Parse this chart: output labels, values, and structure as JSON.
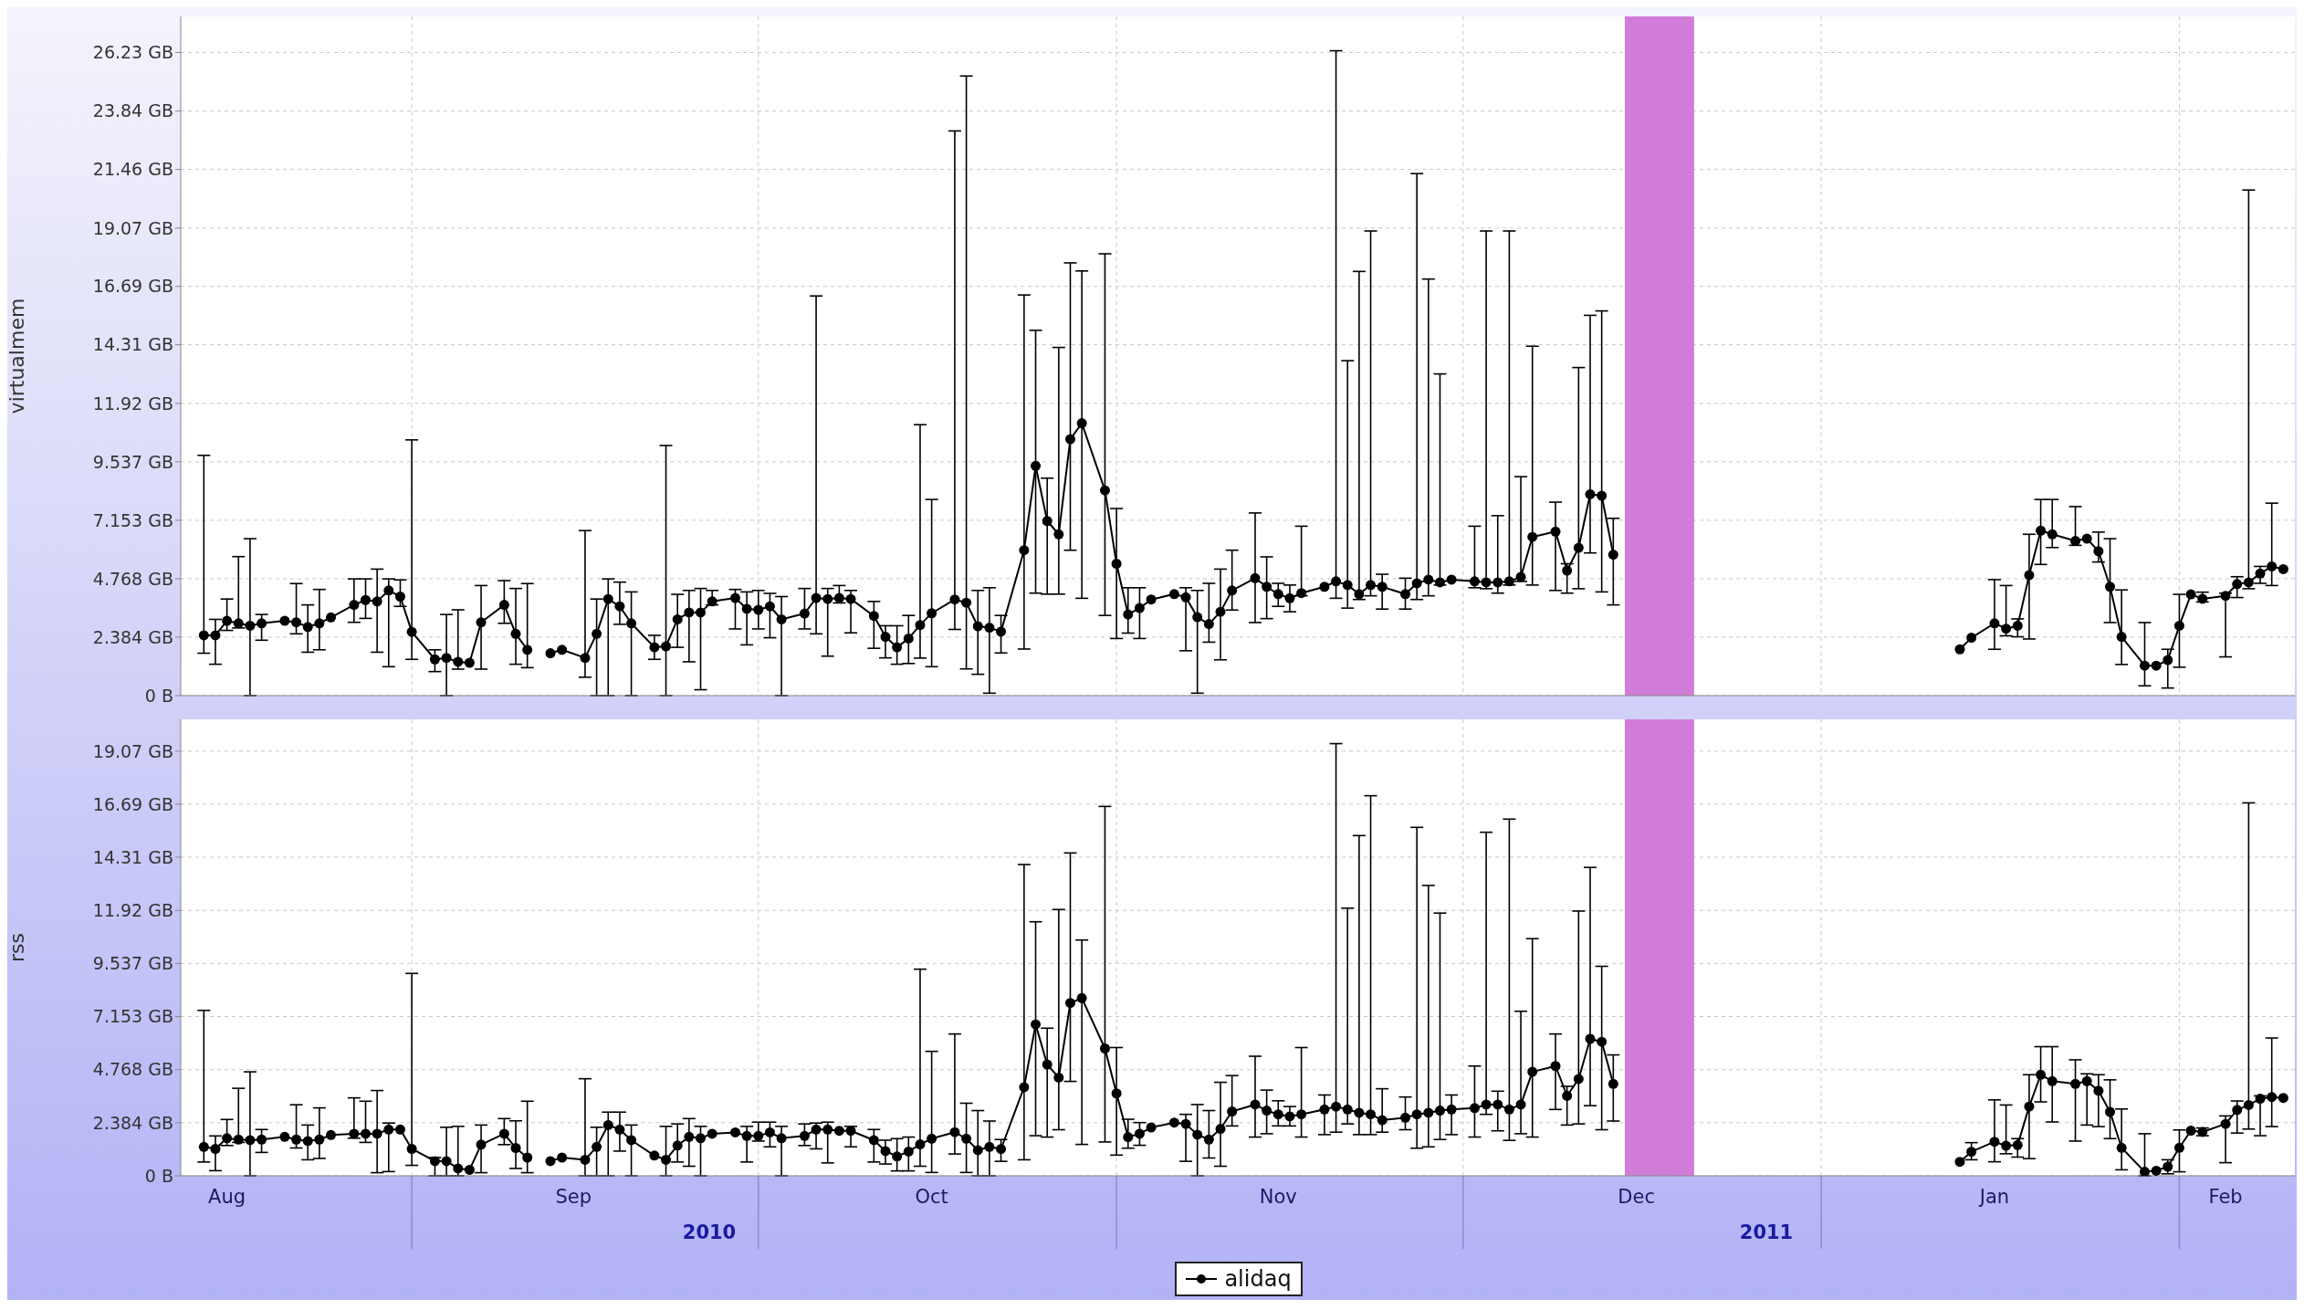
{
  "chart_data": [
    {
      "type": "line",
      "ylabel": "virtualmem",
      "tick_labels": "y",
      "grid": true,
      "legend": false,
      "marker": "circle",
      "line_style": "solid",
      "x": [
        "2010-08-14",
        "2010-08-15",
        "2010-08-16",
        "2010-08-17",
        "2010-08-18",
        "2010-08-19",
        "2010-08-21",
        "2010-08-22",
        "2010-08-23",
        "2010-08-24",
        "2010-08-25",
        "2010-08-27",
        "2010-08-28",
        "2010-08-29",
        "2010-08-30",
        "2010-08-31",
        "2010-09-01",
        "2010-09-03",
        "2010-09-04",
        "2010-09-05",
        "2010-09-06",
        "2010-09-07",
        "2010-09-09",
        "2010-09-10",
        "2010-09-11",
        "2010-09-12",
        "2010-09-13",
        "2010-09-14",
        "2010-09-16",
        "2010-09-17",
        "2010-09-18",
        "2010-09-19",
        "2010-09-20",
        "2010-09-22",
        "2010-09-23",
        "2010-09-24",
        "2010-09-25",
        "2010-09-26",
        "2010-09-27",
        "2010-09-29",
        "2010-09-30",
        "2010-10-01",
        "2010-10-02",
        "2010-10-03",
        "2010-10-05",
        "2010-10-06",
        "2010-10-07",
        "2010-10-08",
        "2010-10-09",
        "2010-10-11",
        "2010-10-12",
        "2010-10-13",
        "2010-10-14",
        "2010-10-15",
        "2010-10-16",
        "2010-10-18",
        "2010-10-19",
        "2010-10-20",
        "2010-10-21",
        "2010-10-22",
        "2010-10-24",
        "2010-10-25",
        "2010-10-26",
        "2010-10-27",
        "2010-10-28",
        "2010-10-29",
        "2010-10-31",
        "2010-11-01",
        "2010-11-02",
        "2010-11-03",
        "2010-11-04",
        "2010-11-06",
        "2010-11-07",
        "2010-11-08",
        "2010-11-09",
        "2010-11-10",
        "2010-11-11",
        "2010-11-13",
        "2010-11-14",
        "2010-11-15",
        "2010-11-16",
        "2010-11-17",
        "2010-11-19",
        "2010-11-20",
        "2010-11-21",
        "2010-11-22",
        "2010-11-23",
        "2010-11-24",
        "2010-11-26",
        "2010-11-27",
        "2010-11-28",
        "2010-11-29",
        "2010-11-30",
        "2010-12-02",
        "2010-12-03",
        "2010-12-04",
        "2010-12-05",
        "2010-12-06",
        "2010-12-07",
        "2010-12-09",
        "2010-12-10",
        "2010-12-11",
        "2010-12-12",
        "2010-12-13",
        "2010-12-14",
        "2010-12-31",
        "2011-01-13",
        "2011-01-14",
        "2011-01-16",
        "2011-01-17",
        "2011-01-18",
        "2011-01-19",
        "2011-01-20",
        "2011-01-21",
        "2011-01-23",
        "2011-01-24",
        "2011-01-25",
        "2011-01-26",
        "2011-01-27",
        "2011-01-29",
        "2011-01-30",
        "2011-01-31",
        "2011-02-01",
        "2011-02-02",
        "2011-02-03",
        "2011-02-05",
        "2011-02-06",
        "2011-02-07",
        "2011-02-08",
        "2011-02-09",
        "2011-02-10"
      ],
      "xlim": [
        "2010-08-12",
        "2011-02-11"
      ],
      "xticks": [
        "2010-09-01",
        "2010-10-01",
        "2010-11-01",
        "2010-12-01",
        "2011-01-01",
        "2011-02-01"
      ],
      "ylim": [
        0,
        27.7
      ],
      "yticks": [
        {
          "value": 0,
          "label": "0 B"
        },
        {
          "value": 2.384,
          "label": "2.384 GB"
        },
        {
          "value": 4.768,
          "label": "4.768 GB"
        },
        {
          "value": 7.153,
          "label": "7.153 GB"
        },
        {
          "value": 9.537,
          "label": "9.537 GB"
        },
        {
          "value": 11.92,
          "label": "11.92 GB"
        },
        {
          "value": 14.31,
          "label": "14.31 GB"
        },
        {
          "value": 16.69,
          "label": "16.69 GB"
        },
        {
          "value": 19.07,
          "label": "19.07 GB"
        },
        {
          "value": 21.46,
          "label": "21.46 GB"
        },
        {
          "value": 23.84,
          "label": "23.84 GB"
        },
        {
          "value": 26.23,
          "label": "26.23 GB"
        }
      ],
      "bands": [
        {
          "axis": "x",
          "from": "2010-12-15",
          "to": "2010-12-21",
          "color": "#d17cd9"
        }
      ],
      "series": [
        {
          "color": "#000000",
          "values": [
            2.46,
            2.46,
            3.05,
            2.95,
            2.85,
            2.95,
            3.05,
            2.99,
            2.8,
            2.95,
            3.19,
            3.7,
            3.9,
            3.84,
            4.29,
            4.04,
            2.6,
            1.48,
            1.54,
            1.38,
            1.34,
            2.99,
            3.7,
            2.52,
            1.87,
            null,
            1.73,
            1.87,
            1.54,
            2.52,
            3.94,
            3.64,
            2.95,
            1.97,
            2.01,
            3.11,
            3.39,
            3.39,
            3.84,
            3.98,
            3.54,
            3.5,
            3.64,
            3.11,
            3.35,
            3.98,
            3.94,
            3.98,
            3.94,
            3.25,
            2.4,
            1.97,
            2.33,
            2.88,
            3.36,
            3.92,
            3.79,
            2.83,
            2.77,
            2.61,
            5.93,
            9.37,
            7.12,
            6.58,
            10.46,
            11.11,
            8.37,
            5.38,
            3.31,
            3.57,
            3.92,
            4.14,
            4.01,
            3.2,
            2.92,
            3.42,
            4.29,
            4.79,
            4.44,
            4.14,
            3.97,
            4.18,
            4.44,
            4.66,
            4.51,
            4.14,
            4.51,
            4.44,
            4.14,
            4.58,
            4.73,
            4.62,
            4.73,
            4.66,
            4.62,
            4.62,
            4.66,
            4.84,
            6.47,
            6.69,
            5.1,
            6.03,
            8.21,
            8.15,
            5.75,
            null,
            1.89,
            2.36,
            2.95,
            2.73,
            2.85,
            4.91,
            6.73,
            6.58,
            6.31,
            6.4,
            5.89,
            4.44,
            2.4,
            1.22,
            1.22,
            1.45,
            2.85,
            4.13,
            3.95,
            4.07,
            4.55,
            4.62,
            4.98,
            5.27,
            5.16
          ],
          "errors": [
            [
              1.73,
              9.8
            ],
            [
              1.28,
              3.11
            ],
            [
              2.66,
              3.94
            ],
            [
              2.76,
              5.67
            ],
            [
              0,
              6.4
            ],
            [
              2.26,
              3.31
            ],
            null,
            [
              2.52,
              4.57
            ],
            [
              1.77,
              3.7
            ],
            [
              1.87,
              4.33
            ],
            null,
            [
              2.99,
              4.76
            ],
            [
              3.15,
              4.76
            ],
            [
              1.77,
              5.16
            ],
            [
              1.18,
              4.76
            ],
            [
              3.64,
              4.72
            ],
            [
              1.48,
              10.43
            ],
            [
              0.98,
              1.87
            ],
            [
              0,
              3.31
            ],
            [
              1.08,
              3.5
            ],
            null,
            [
              1.08,
              4.49
            ],
            [
              2.95,
              4.69
            ],
            [
              1.28,
              4.37
            ],
            [
              1.14,
              4.57
            ],
            null,
            null,
            null,
            [
              0.75,
              6.73
            ],
            [
              0,
              3.94
            ],
            [
              0,
              4.76
            ],
            [
              2.91,
              4.63
            ],
            [
              0,
              4.23
            ],
            [
              1.48,
              2.46
            ],
            [
              0,
              10.2
            ],
            [
              1.97,
              4.13
            ],
            [
              1.38,
              4.29
            ],
            [
              0.24,
              4.37
            ],
            [
              3.7,
              4.29
            ],
            [
              2.72,
              4.33
            ],
            [
              2.07,
              4.23
            ],
            [
              2.72,
              4.29
            ],
            [
              2.36,
              4.17
            ],
            [
              0,
              4.04
            ],
            [
              2.72,
              4.37
            ],
            [
              2.52,
              16.3
            ],
            [
              1.61,
              4.37
            ],
            [
              3.78,
              4.49
            ],
            [
              2.56,
              4.29
            ],
            [
              1.93,
              3.84
            ],
            [
              1.54,
              2.85
            ],
            [
              1.28,
              2.85
            ],
            [
              1.31,
              3.27
            ],
            [
              1.53,
              11.05
            ],
            [
              1.18,
              8.0
            ],
            [
              2.7,
              23.03
            ],
            [
              1.09,
              25.27
            ],
            [
              0.87,
              4.29
            ],
            [
              0.1,
              4.4
            ],
            [
              1.74,
              3.27
            ],
            [
              1.9,
              16.34
            ],
            [
              4.18,
              14.9
            ],
            [
              4.14,
              8.87
            ],
            [
              4.14,
              14.2
            ],
            [
              5.93,
              17.65
            ],
            [
              3.97,
              17.32
            ],
            [
              3.27,
              18.02
            ],
            [
              2.33,
              7.63
            ],
            [
              2.55,
              4.4
            ],
            [
              2.33,
              4.4
            ],
            null,
            null,
            [
              1.83,
              4.4
            ],
            [
              0.1,
              4.29
            ],
            [
              2.18,
              4.58
            ],
            [
              1.46,
              5.16
            ],
            [
              3.49,
              5.93
            ],
            [
              2.98,
              7.45
            ],
            [
              3.14,
              5.66
            ],
            [
              3.64,
              4.58
            ],
            [
              3.42,
              4.51
            ],
            [
              4.07,
              6.91
            ],
            null,
            [
              3.97,
              26.3
            ],
            [
              3.57,
              13.66
            ],
            [
              3.92,
              17.3
            ],
            [
              4.07,
              18.95
            ],
            [
              3.53,
              4.95
            ],
            [
              3.53,
              4.79
            ],
            [
              3.92,
              21.29
            ],
            [
              4.07,
              16.99
            ],
            [
              4.51,
              13.12
            ],
            null,
            [
              4.4,
              6.91
            ],
            [
              4.36,
              18.95
            ],
            [
              4.18,
              7.34
            ],
            [
              4.51,
              18.95
            ],
            [
              4.66,
              8.93
            ],
            [
              4.51,
              14.25
            ],
            [
              4.29,
              7.89
            ],
            [
              4.18,
              5.38
            ],
            [
              4.36,
              13.38
            ],
            [
              5.82,
              15.51
            ],
            [
              4.23,
              15.69
            ],
            [
              3.7,
              7.23
            ],
            null,
            null,
            null,
            [
              1.89,
              4.73
            ],
            [
              2.44,
              4.49
            ],
            [
              2.4,
              3.13
            ],
            [
              2.31,
              6.58
            ],
            [
              5.35,
              8.0
            ],
            [
              6.04,
              8.0
            ],
            [
              6.13,
              7.71
            ],
            null,
            [
              5.45,
              6.67
            ],
            [
              2.98,
              6.4
            ],
            [
              1.27,
              4.31
            ],
            [
              0.4,
              2.98
            ],
            null,
            [
              0.31,
              1.89
            ],
            [
              1.16,
              4.13
            ],
            null,
            [
              3.82,
              4.22
            ],
            [
              1.58,
              4.18
            ],
            [
              4.0,
              4.85
            ],
            [
              4.36,
              20.62
            ],
            [
              4.58,
              5.27
            ],
            [
              4.49,
              7.85
            ],
            null
          ]
        }
      ]
    },
    {
      "type": "line",
      "ylabel": "rss",
      "grid": true,
      "legend": "bottom",
      "marker": "circle",
      "line_style": "solid",
      "x": [
        "2010-08-14",
        "2010-08-15",
        "2010-08-16",
        "2010-08-17",
        "2010-08-18",
        "2010-08-19",
        "2010-08-21",
        "2010-08-22",
        "2010-08-23",
        "2010-08-24",
        "2010-08-25",
        "2010-08-27",
        "2010-08-28",
        "2010-08-29",
        "2010-08-30",
        "2010-08-31",
        "2010-09-01",
        "2010-09-03",
        "2010-09-04",
        "2010-09-05",
        "2010-09-06",
        "2010-09-07",
        "2010-09-09",
        "2010-09-10",
        "2010-09-11",
        "2010-09-12",
        "2010-09-13",
        "2010-09-14",
        "2010-09-16",
        "2010-09-17",
        "2010-09-18",
        "2010-09-19",
        "2010-09-20",
        "2010-09-22",
        "2010-09-23",
        "2010-09-24",
        "2010-09-25",
        "2010-09-26",
        "2010-09-27",
        "2010-09-29",
        "2010-09-30",
        "2010-10-01",
        "2010-10-02",
        "2010-10-03",
        "2010-10-05",
        "2010-10-06",
        "2010-10-07",
        "2010-10-08",
        "2010-10-09",
        "2010-10-11",
        "2010-10-12",
        "2010-10-13",
        "2010-10-14",
        "2010-10-15",
        "2010-10-16",
        "2010-10-18",
        "2010-10-19",
        "2010-10-20",
        "2010-10-21",
        "2010-10-22",
        "2010-10-24",
        "2010-10-25",
        "2010-10-26",
        "2010-10-27",
        "2010-10-28",
        "2010-10-29",
        "2010-10-31",
        "2010-11-01",
        "2010-11-02",
        "2010-11-03",
        "2010-11-04",
        "2010-11-06",
        "2010-11-07",
        "2010-11-08",
        "2010-11-09",
        "2010-11-10",
        "2010-11-11",
        "2010-11-13",
        "2010-11-14",
        "2010-11-15",
        "2010-11-16",
        "2010-11-17",
        "2010-11-19",
        "2010-11-20",
        "2010-11-21",
        "2010-11-22",
        "2010-11-23",
        "2010-11-24",
        "2010-11-26",
        "2010-11-27",
        "2010-11-28",
        "2010-11-29",
        "2010-11-30",
        "2010-12-02",
        "2010-12-03",
        "2010-12-04",
        "2010-12-05",
        "2010-12-06",
        "2010-12-07",
        "2010-12-09",
        "2010-12-10",
        "2010-12-11",
        "2010-12-12",
        "2010-12-13",
        "2010-12-14",
        "2010-12-31",
        "2011-01-13",
        "2011-01-14",
        "2011-01-16",
        "2011-01-17",
        "2011-01-18",
        "2011-01-19",
        "2011-01-20",
        "2011-01-21",
        "2011-01-23",
        "2011-01-24",
        "2011-01-25",
        "2011-01-26",
        "2011-01-27",
        "2011-01-29",
        "2011-01-30",
        "2011-01-31",
        "2011-02-01",
        "2011-02-02",
        "2011-02-03",
        "2011-02-05",
        "2011-02-06",
        "2011-02-07",
        "2011-02-08",
        "2011-02-09",
        "2011-02-10"
      ],
      "xlim": [
        "2010-08-12",
        "2011-02-11"
      ],
      "xticks": [
        {
          "value": "2010-08-16",
          "label": "Aug"
        },
        {
          "value": "2010-09-01",
          "label": null
        },
        {
          "value": "2010-09-15",
          "label": "Sep"
        },
        {
          "value": "2010-10-01",
          "label": null
        },
        {
          "value": "2010-10-16",
          "label": "Oct"
        },
        {
          "value": "2010-11-01",
          "label": null
        },
        {
          "value": "2010-11-15",
          "label": "Nov"
        },
        {
          "value": "2010-12-01",
          "label": null
        },
        {
          "value": "2010-12-16",
          "label": "Dec"
        },
        {
          "value": "2011-01-01",
          "label": null
        },
        {
          "value": "2011-01-16",
          "label": "Jan"
        },
        {
          "value": "2011-02-01",
          "label": null
        },
        {
          "value": "2011-02-05",
          "label": "Feb"
        }
      ],
      "ylim": [
        0,
        20.5
      ],
      "yticks": [
        {
          "value": 0,
          "label": "0 B"
        },
        {
          "value": 2.384,
          "label": "2.384 GB"
        },
        {
          "value": 4.768,
          "label": "4.768 GB"
        },
        {
          "value": 7.153,
          "label": "7.153 GB"
        },
        {
          "value": 9.537,
          "label": "9.537 GB"
        },
        {
          "value": 11.92,
          "label": "11.92 GB"
        },
        {
          "value": 14.31,
          "label": "14.31 GB"
        },
        {
          "value": 16.69,
          "label": "16.69 GB"
        },
        {
          "value": 19.07,
          "label": "19.07 GB"
        }
      ],
      "bands": [
        {
          "axis": "x",
          "from": "2010-12-15",
          "to": "2010-12-21",
          "color": "#d17cd9"
        }
      ],
      "annotations": [
        "2010",
        "2011"
      ],
      "series": [
        {
          "name": "alidaq",
          "color": "#000000",
          "values": [
            1.3,
            1.21,
            1.69,
            1.63,
            1.6,
            1.63,
            1.75,
            1.63,
            1.56,
            1.63,
            1.83,
            1.89,
            1.89,
            1.89,
            2.08,
            2.08,
            1.21,
            0.66,
            0.66,
            0.33,
            0.27,
            1.4,
            1.89,
            1.25,
            0.82,
            null,
            0.66,
            0.82,
            0.72,
            1.3,
            2.28,
            2.08,
            1.6,
            0.91,
            0.72,
            1.36,
            1.75,
            1.69,
            1.89,
            1.95,
            1.79,
            1.79,
            1.95,
            1.69,
            1.79,
            2.08,
            2.08,
            2.02,
            2.02,
            1.6,
            1.11,
            0.87,
            1.09,
            1.41,
            1.67,
            1.96,
            1.67,
            1.15,
            1.3,
            1.2,
            3.98,
            6.8,
            5.0,
            4.41,
            7.76,
            7.98,
            5.72,
            3.7,
            1.74,
            1.89,
            2.17,
            2.39,
            2.33,
            1.85,
            1.63,
            2.11,
            2.89,
            3.2,
            2.93,
            2.76,
            2.67,
            2.76,
            2.98,
            3.11,
            2.98,
            2.83,
            2.76,
            2.5,
            2.61,
            2.76,
            2.83,
            2.93,
            2.98,
            3.04,
            3.2,
            3.2,
            2.98,
            3.2,
            4.67,
            4.93,
            3.59,
            4.35,
            6.15,
            6.02,
            4.13,
            null,
            0.63,
            1.08,
            1.53,
            1.35,
            1.38,
            3.11,
            4.54,
            4.25,
            4.13,
            4.25,
            3.82,
            2.87,
            1.26,
            0.18,
            0.23,
            0.41,
            1.26,
            2.03,
            1.97,
            2.33,
            2.96,
            3.18,
            3.46,
            3.54,
            3.5
          ],
          "errors": [
            [
              0.62,
              7.43
            ],
            [
              0.23,
              1.79
            ],
            [
              1.36,
              2.53
            ],
            [
              1.5,
              3.93
            ],
            [
              0,
              4.67
            ],
            [
              1.05,
              2.08
            ],
            null,
            [
              1.25,
              3.19
            ],
            [
              0.72,
              2.28
            ],
            [
              0.78,
              3.05
            ],
            null,
            [
              1.69,
              3.5
            ],
            [
              1.5,
              3.35
            ],
            [
              0.14,
              3.83
            ],
            [
              0.19,
              2.37
            ],
            null,
            [
              0.47,
              9.09
            ],
            [
              0,
              0.82
            ],
            [
              0,
              2.18
            ],
            [
              0,
              2.22
            ],
            null,
            [
              0.14,
              2.28
            ],
            [
              1.4,
              2.57
            ],
            [
              0.33,
              2.47
            ],
            [
              0.14,
              3.35
            ],
            null,
            null,
            null,
            [
              0,
              4.36
            ],
            [
              0,
              2.18
            ],
            [
              0,
              2.86
            ],
            [
              1.11,
              2.86
            ],
            [
              0,
              2.28
            ],
            null,
            [
              0,
              2.22
            ],
            [
              0.62,
              2.33
            ],
            [
              0.43,
              2.57
            ],
            [
              0,
              2.22
            ],
            null,
            null,
            [
              0.62,
              2.22
            ],
            [
              1.56,
              2.41
            ],
            [
              1.3,
              2.41
            ],
            [
              0,
              2.22
            ],
            [
              1.36,
              2.33
            ],
            [
              1.21,
              2.37
            ],
            [
              0.58,
              2.41
            ],
            null,
            [
              1.3,
              2.22
            ],
            [
              0.62,
              2.08
            ],
            [
              0.53,
              1.6
            ],
            [
              0.22,
              1.67
            ],
            [
              0.22,
              1.74
            ],
            [
              0.43,
              9.28
            ],
            [
              0.15,
              5.59
            ],
            [
              0.98,
              6.37
            ],
            [
              0.15,
              3.26
            ],
            [
              0,
              2.93
            ],
            [
              0,
              2.46
            ],
            [
              0.65,
              1.63
            ],
            [
              0.72,
              13.98
            ],
            [
              1.8,
              11.41
            ],
            [
              1.74,
              6.63
            ],
            [
              2.07,
              11.96
            ],
            [
              4.24,
              14.5
            ],
            [
              1.41,
              10.59
            ],
            [
              1.52,
              16.59
            ],
            [
              0.93,
              5.76
            ],
            [
              1.24,
              2.54
            ],
            [
              1.37,
              2.39
            ],
            null,
            null,
            [
              0.65,
              2.76
            ],
            [
              0,
              3.2
            ],
            [
              0.8,
              2.93
            ],
            [
              0.43,
              4.2
            ],
            [
              2.24,
              4.5
            ],
            [
              1.74,
              5.37
            ],
            [
              1.89,
              3.85
            ],
            [
              2.24,
              3.37
            ],
            [
              2.24,
              3.11
            ],
            [
              1.74,
              5.76
            ],
            [
              1.85,
              3.63
            ],
            [
              1.96,
              19.41
            ],
            [
              2.33,
              12.02
            ],
            [
              1.85,
              15.28
            ],
            [
              1.85,
              17.07
            ],
            [
              1.96,
              3.91
            ],
            [
              2.07,
              3.54
            ],
            [
              1.24,
              15.65
            ],
            [
              1.3,
              13.04
            ],
            [
              1.63,
              11.8
            ],
            [
              1.85,
              3.63
            ],
            [
              1.74,
              4.93
            ],
            [
              2.76,
              15.43
            ],
            [
              2.02,
              3.8
            ],
            [
              1.59,
              16.02
            ],
            [
              1.89,
              7.39
            ],
            [
              1.74,
              10.65
            ],
            [
              2.98,
              6.37
            ],
            [
              2.28,
              4.02
            ],
            [
              2.33,
              11.89
            ],
            [
              3.15,
              13.85
            ],
            [
              2.07,
              9.41
            ],
            [
              2.46,
              5.43
            ],
            null,
            null,
            [
              0.72,
              1.49
            ],
            [
              0.63,
              3.41
            ],
            [
              0.99,
              3.18
            ],
            [
              0.84,
              1.67
            ],
            [
              0.77,
              4.54
            ],
            [
              3.32,
              5.8
            ],
            [
              2.42,
              5.8
            ],
            [
              1.56,
              5.21
            ],
            [
              2.28,
              4.58
            ],
            [
              2.21,
              4.54
            ],
            [
              1.67,
              4.31
            ],
            [
              0.27,
              3.0
            ],
            [
              0,
              1.89
            ],
            null,
            [
              0.09,
              0.72
            ],
            [
              0.18,
              2.06
            ],
            null,
            [
              1.8,
              2.15
            ],
            [
              0.59,
              2.69
            ],
            [
              1.92,
              3.36
            ],
            [
              2.1,
              16.75
            ],
            [
              1.8,
              3.59
            ],
            [
              2.21,
              6.19
            ],
            null
          ]
        }
      ]
    }
  ]
}
